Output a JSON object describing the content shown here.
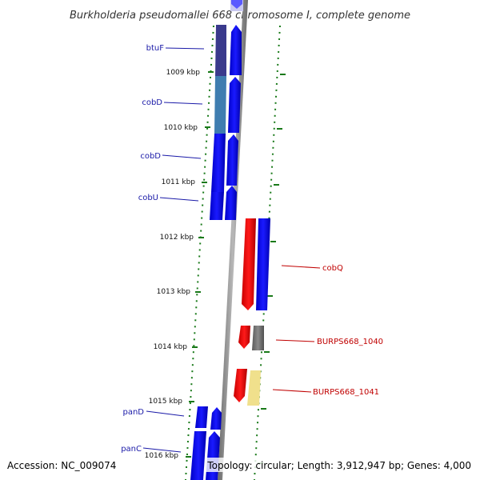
{
  "title": "Burkholderia pseudomallei 668 chromosome I, complete genome",
  "accession": "Accession: NC_009074",
  "summary": "Topology: circular; Length: 3,912,947 bp; Genes: 4,000",
  "ticks": [
    "1009 kbp",
    "1010 kbp",
    "1011 kbp",
    "1012 kbp",
    "1013 kbp",
    "1014 kbp",
    "1015 kbp",
    "1016 kbp"
  ],
  "left_genes": [
    "btuF",
    "cobD",
    "cobD",
    "cobU",
    "panD",
    "panC"
  ],
  "right_genes": [
    "cobQ",
    "BURPS668_1040",
    "BURPS668_1041"
  ],
  "colors": {
    "forward_cds": "#0000ee",
    "reverse_cds": "#ee0000",
    "btuF_feature": "#3a3a8c",
    "cobD_feature": "#3f7db0",
    "gray_feature": "#707070",
    "yellow_feature": "#f0e08c",
    "tick": "#1a7a1a",
    "backbone": "#8a8a8a"
  }
}
